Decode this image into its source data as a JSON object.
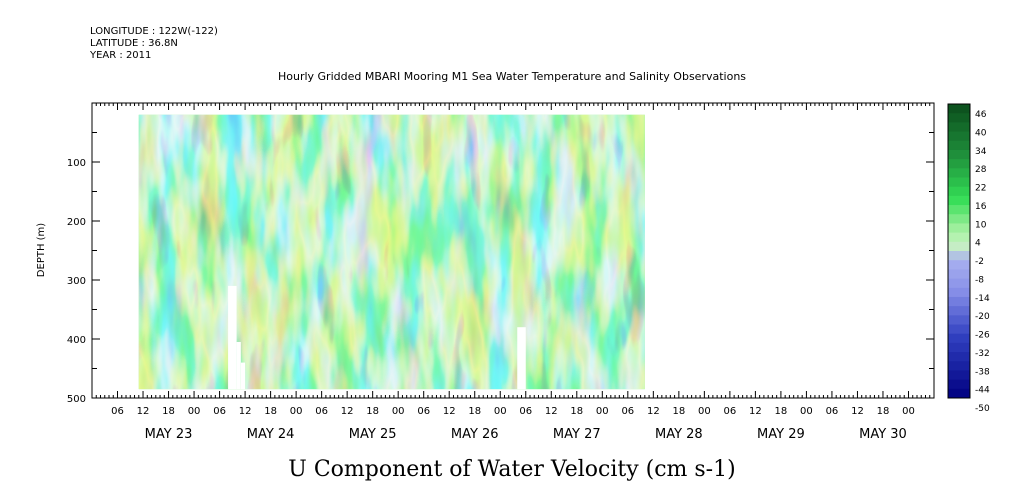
{
  "header": {
    "longitude": "LONGITUDE : 122W(-122)",
    "latitude": "LATITUDE : 36.8N",
    "year": "YEAR : 2011"
  },
  "chart_data": {
    "type": "heatmap",
    "title": "Hourly Gridded MBARI Mooring M1 Sea Water Temperature and Salinity Observations",
    "xlabel": "",
    "ylabel": "DEPTH (m)",
    "variable_label": "U Component of Water Velocity (cm s-1)",
    "y_ticks": [
      100,
      200,
      300,
      400,
      500
    ],
    "ylim": [
      500,
      0
    ],
    "x_hour_ticks": [
      "06",
      "12",
      "18",
      "00",
      "06",
      "12",
      "18",
      "00",
      "06",
      "12",
      "18",
      "00",
      "06",
      "12",
      "18",
      "00",
      "06",
      "12",
      "18",
      "00",
      "06",
      "12",
      "18",
      "00",
      "06",
      "12",
      "18",
      "00",
      "06",
      "12",
      "18",
      "00"
    ],
    "x_day_labels": [
      "MAY 23",
      "MAY 24",
      "MAY 25",
      "MAY 26",
      "MAY 27",
      "MAY 28",
      "MAY 29",
      "MAY 30"
    ],
    "x_range_hours": [
      0,
      198
    ],
    "data_extent_hours": [
      11,
      130
    ],
    "data_depth_range": [
      20,
      485
    ],
    "gaps": [
      {
        "t0": 32,
        "t1": 34,
        "d0": 310,
        "d1": 485
      },
      {
        "t0": 34,
        "t1": 35,
        "d0": 405,
        "d1": 485
      },
      {
        "t0": 35,
        "t1": 36,
        "d0": 440,
        "d1": 485
      },
      {
        "t0": 100,
        "t1": 102,
        "d0": 380,
        "d1": 485
      }
    ],
    "colorbar_labels": [
      "46",
      "40",
      "34",
      "28",
      "22",
      "16",
      "10",
      "4",
      "-2",
      "-8",
      "-14",
      "-20",
      "-26",
      "-32",
      "-38",
      "-44",
      "-50"
    ],
    "colorbar_range": [
      -50,
      46
    ],
    "colors": {
      "strong_positive": "#1e8c3a",
      "positive": "#33dd55",
      "weak_positive": "#99ee99",
      "near_zero": "#c8f4c0",
      "weak_negative": "#a8b0f0",
      "negative": "#8890e8",
      "strong_negative": "#3040c0"
    }
  }
}
